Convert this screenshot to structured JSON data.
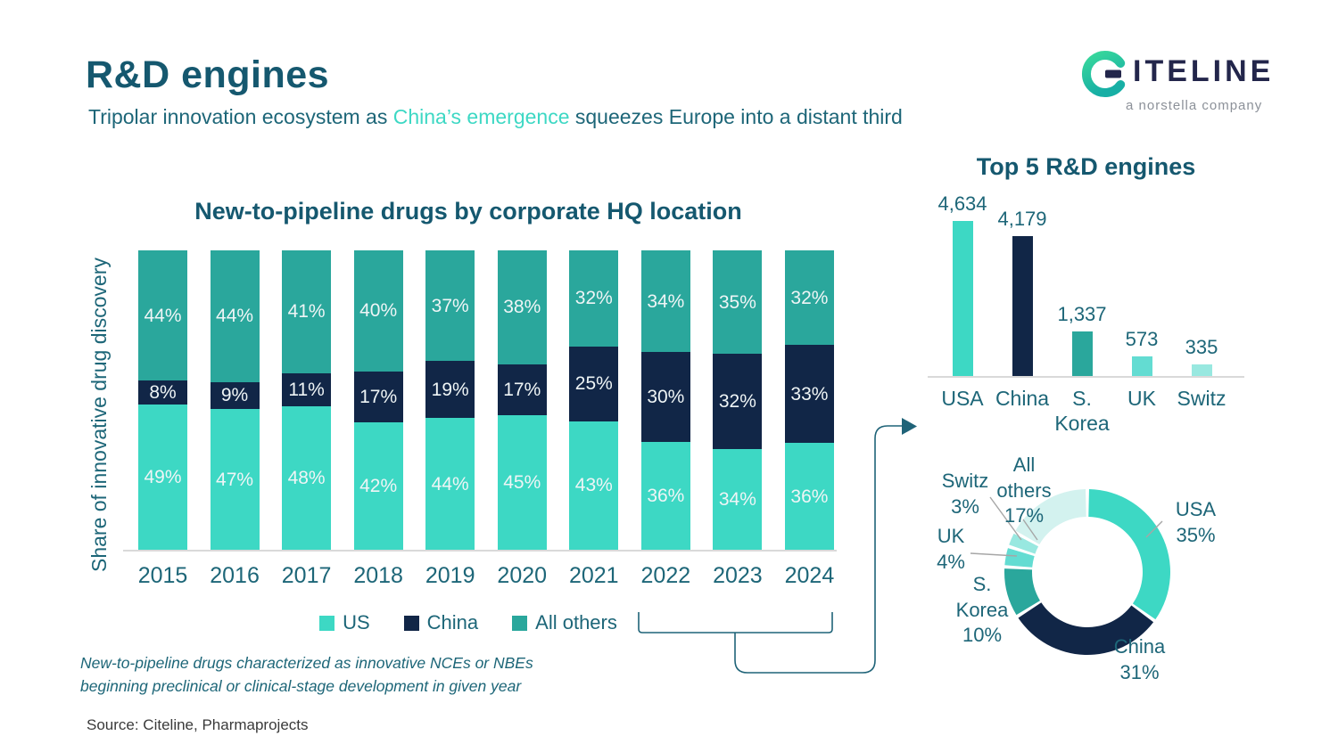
{
  "header": {
    "title": "R&D engines",
    "subtitle_prefix": "Tripolar innovation ecosystem as ",
    "subtitle_accent": "China’s emergence",
    "subtitle_suffix": " squeezes Europe into a distant third",
    "logo": {
      "wordmark": "ITELINE",
      "tagline": "a norstella company"
    }
  },
  "colors": {
    "us": "#3DD8C4",
    "china": "#112647",
    "others": "#2AA79C",
    "uk": "#63DCD2",
    "switz": "#98E8E0",
    "donut_others": "#D3F2EF",
    "title_teal": "#15586F",
    "text_teal": "#1D6678",
    "baseline_gray": "#D9D9D9",
    "leader_gray": "#A6A6A6",
    "connector": "#1F6378"
  },
  "chart_data": [
    {
      "type": "bar",
      "variant": "stacked-100",
      "title": "New-to-pipeline drugs by corporate HQ location",
      "ylabel": "Share of innovative drug discovery",
      "unit": "%",
      "categories": [
        "2015",
        "2016",
        "2017",
        "2018",
        "2019",
        "2020",
        "2021",
        "2022",
        "2023",
        "2024"
      ],
      "series": [
        {
          "name": "US",
          "color_key": "us",
          "values": [
            49,
            47,
            48,
            42,
            44,
            45,
            43,
            36,
            34,
            36
          ]
        },
        {
          "name": "China",
          "color_key": "china",
          "values": [
            8,
            9,
            11,
            17,
            19,
            17,
            25,
            30,
            32,
            33
          ]
        },
        {
          "name": "All others",
          "color_key": "others",
          "values": [
            44,
            44,
            41,
            40,
            37,
            38,
            32,
            34,
            35,
            32
          ]
        }
      ],
      "legend_position": "bottom"
    },
    {
      "type": "bar",
      "title": "Top 5 R&D engines",
      "categories": [
        "USA",
        "China",
        "S. Korea",
        "UK",
        "Switz"
      ],
      "values": [
        4634,
        4179,
        1337,
        573,
        335
      ],
      "value_labels": [
        "4,634",
        "4,179",
        "1,337",
        "573",
        "335"
      ],
      "color_keys": [
        "us",
        "china",
        "others",
        "uk",
        "switz"
      ],
      "ylim": [
        0,
        4634
      ]
    },
    {
      "type": "pie",
      "variant": "donut",
      "slices": [
        {
          "label": "USA",
          "pct": 35,
          "color_key": "us"
        },
        {
          "label": "China",
          "pct": 31,
          "color_key": "china"
        },
        {
          "label": "S. Korea",
          "pct": 10,
          "color_key": "others"
        },
        {
          "label": "UK",
          "pct": 4,
          "color_key": "uk"
        },
        {
          "label": "Switz",
          "pct": 3,
          "color_key": "switz"
        },
        {
          "label": "All others",
          "pct": 17,
          "color_key": "donut_others"
        }
      ]
    }
  ],
  "legend": [
    {
      "label": "US",
      "color_key": "us"
    },
    {
      "label": "China",
      "color_key": "china"
    },
    {
      "label": "All others",
      "color_key": "others"
    }
  ],
  "footnote": {
    "line1": "New-to-pipeline drugs characterized as innovative NCEs or NBEs",
    "line2": "beginning preclinical or clinical-stage development in given year"
  },
  "source": "Source: Citeline, Pharmaprojects"
}
